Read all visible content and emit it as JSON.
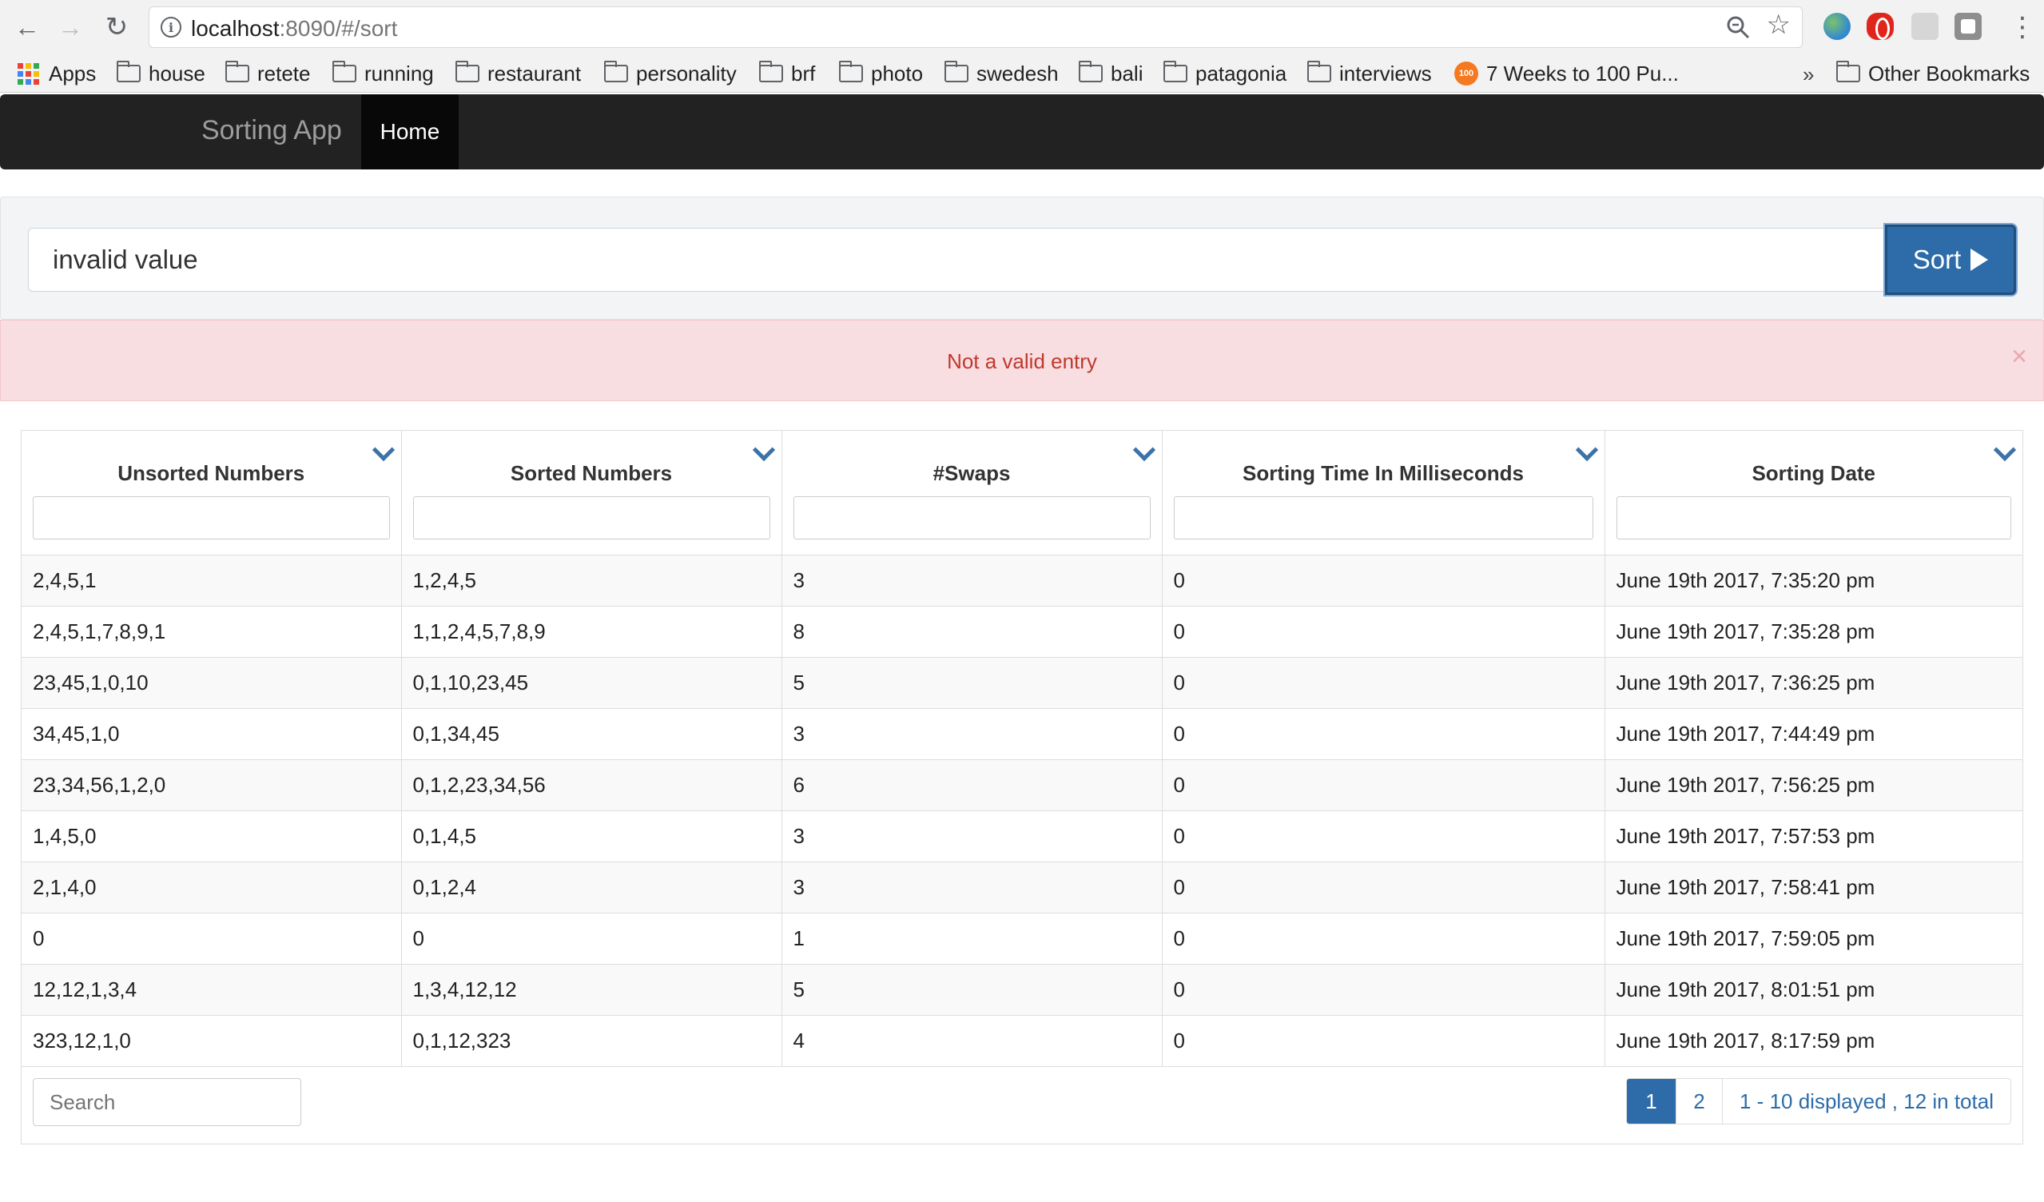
{
  "browser": {
    "url_host": "localhost",
    "url_rest": ":8090/#/sort",
    "bookmarks": [
      {
        "label": "Apps",
        "type": "apps"
      },
      {
        "label": "house",
        "type": "folder"
      },
      {
        "label": "retete",
        "type": "folder"
      },
      {
        "label": "running",
        "type": "folder"
      },
      {
        "label": "restaurant",
        "type": "folder"
      },
      {
        "label": "personality",
        "type": "folder"
      },
      {
        "label": "brf",
        "type": "folder"
      },
      {
        "label": "photo",
        "type": "folder"
      },
      {
        "label": "swedesh",
        "type": "folder"
      },
      {
        "label": "bali",
        "type": "folder"
      },
      {
        "label": "patagonia",
        "type": "folder"
      },
      {
        "label": "interviews",
        "type": "folder"
      },
      {
        "label": "7 Weeks to 100 Pu...",
        "type": "badge"
      }
    ],
    "bookmarks_overflow": "»",
    "other_bookmarks": "Other Bookmarks",
    "badge_text": "100"
  },
  "navbar": {
    "brand": "Sorting App",
    "home": "Home"
  },
  "form": {
    "input_value": "invalid value",
    "sort_label": "Sort"
  },
  "alert": {
    "message": "Not a valid entry",
    "close": "×"
  },
  "table": {
    "columns": [
      "Unsorted Numbers",
      "Sorted Numbers",
      "#Swaps",
      "Sorting Time In Milliseconds",
      "Sorting Date"
    ],
    "rows": [
      [
        "2,4,5,1",
        "1,2,4,5",
        "3",
        "0",
        "June 19th 2017, 7:35:20 pm"
      ],
      [
        "2,4,5,1,7,8,9,1",
        "1,1,2,4,5,7,8,9",
        "8",
        "0",
        "June 19th 2017, 7:35:28 pm"
      ],
      [
        "23,45,1,0,10",
        "0,1,10,23,45",
        "5",
        "0",
        "June 19th 2017, 7:36:25 pm"
      ],
      [
        "34,45,1,0",
        "0,1,34,45",
        "3",
        "0",
        "June 19th 2017, 7:44:49 pm"
      ],
      [
        "23,34,56,1,2,0",
        "0,1,2,23,34,56",
        "6",
        "0",
        "June 19th 2017, 7:56:25 pm"
      ],
      [
        "1,4,5,0",
        "0,1,4,5",
        "3",
        "0",
        "June 19th 2017, 7:57:53 pm"
      ],
      [
        "2,1,4,0",
        "0,1,2,4",
        "3",
        "0",
        "June 19th 2017, 7:58:41 pm"
      ],
      [
        "0",
        "0",
        "1",
        "0",
        "June 19th 2017, 7:59:05 pm"
      ],
      [
        "12,12,1,3,4",
        "1,3,4,12,12",
        "5",
        "0",
        "June 19th 2017, 8:01:51 pm"
      ],
      [
        "323,12,1,0",
        "0,1,12,323",
        "4",
        "0",
        "June 19th 2017, 8:17:59 pm"
      ]
    ],
    "search_placeholder": "Search",
    "pages": [
      "1",
      "2"
    ],
    "active_page": "1",
    "page_info": "1 - 10 displayed , 12 in total"
  },
  "colors": {
    "accent": "#2d6ca8",
    "navbar": "#222222",
    "alert_bg": "#f8dde1",
    "alert_text": "#c0392b"
  }
}
